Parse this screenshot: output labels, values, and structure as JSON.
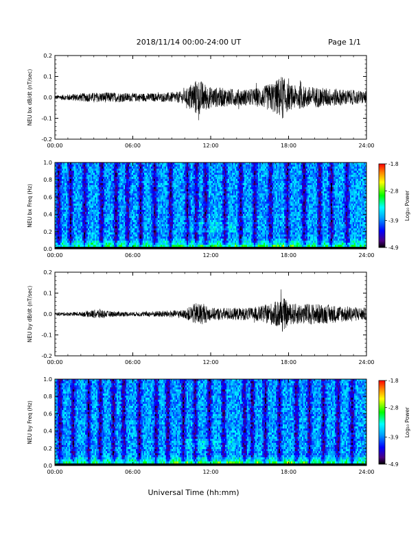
{
  "header": {
    "title": "2018/11/14  00:00-24:00 UT",
    "page": "Page 1/1"
  },
  "xlabel": "Universal Time (hh:mm)",
  "colorbar": {
    "label": "Log₁₀ Power",
    "ticks": [
      "-1.8",
      "-2.8",
      "-3.9",
      "-4.9"
    ],
    "range": [
      -4.9,
      -1.8
    ]
  },
  "chart_data": [
    {
      "type": "line",
      "ylabel": "NEU bx dB/dt (nT/sec)",
      "xlim": [
        0,
        24
      ],
      "ylim": [
        -0.2,
        0.2
      ],
      "x_ticks": [
        "00:00",
        "06:00",
        "12:00",
        "18:00",
        "24:00"
      ],
      "y_ticks": [
        "0.2",
        "0.1",
        "0.0",
        "-0.1",
        "-0.2"
      ],
      "amplitude_envelope_hours": [
        0,
        2,
        4,
        6,
        8,
        10,
        10.5,
        11,
        12,
        14,
        15,
        16,
        17,
        17.5,
        18,
        20,
        22,
        24
      ],
      "amplitude_envelope_values": [
        0.01,
        0.02,
        0.025,
        0.02,
        0.02,
        0.03,
        0.07,
        0.09,
        0.05,
        0.04,
        0.04,
        0.05,
        0.08,
        0.11,
        0.06,
        0.05,
        0.04,
        0.03
      ]
    },
    {
      "type": "heatmap",
      "ylabel": "NEU bx Freq (Hz)",
      "xlim": [
        0,
        24
      ],
      "ylim": [
        0,
        1.0
      ],
      "x_ticks": [
        "00:00",
        "06:00",
        "12:00",
        "18:00",
        "24:00"
      ],
      "y_ticks": [
        "1.0",
        "0.8",
        "0.6",
        "0.4",
        "0.2",
        "0.0"
      ],
      "colorscale": "rainbow",
      "dark_band_hours": [
        0.3,
        1.2,
        2.3,
        3.6,
        4.7,
        5.6,
        6.6,
        7.7,
        8.9,
        10.2,
        10.9,
        11.6,
        13.1,
        14.3,
        15.4,
        16.6,
        17.9,
        19.2,
        20.4,
        21.3,
        22.5
      ]
    },
    {
      "type": "line",
      "ylabel": "NEU by dB/dt (nT/sec)",
      "xlim": [
        0,
        24
      ],
      "ylim": [
        -0.2,
        0.2
      ],
      "x_ticks": [
        "00:00",
        "06:00",
        "12:00",
        "18:00",
        "24:00"
      ],
      "y_ticks": [
        "0.2",
        "0.1",
        "0.0",
        "-0.1",
        "-0.2"
      ],
      "amplitude_envelope_hours": [
        0,
        2,
        3.5,
        4,
        6,
        8,
        10,
        10.5,
        11,
        12,
        14,
        15,
        16,
        17,
        17.5,
        18,
        20,
        22,
        24
      ],
      "amplitude_envelope_values": [
        0.008,
        0.01,
        0.025,
        0.015,
        0.01,
        0.015,
        0.02,
        0.04,
        0.06,
        0.03,
        0.03,
        0.03,
        0.04,
        0.06,
        0.09,
        0.05,
        0.05,
        0.04,
        0.03
      ]
    },
    {
      "type": "heatmap",
      "ylabel": "NEU by Freq (Hz)",
      "xlim": [
        0,
        24
      ],
      "ylim": [
        0,
        1.0
      ],
      "x_ticks": [
        "00:00",
        "06:00",
        "12:00",
        "18:00",
        "24:00"
      ],
      "y_ticks": [
        "1.0",
        "0.8",
        "0.6",
        "0.4",
        "0.2",
        "0.0"
      ],
      "colorscale": "rainbow",
      "dark_band_hours": [
        0.4,
        1.4,
        2.6,
        3.5,
        4.5,
        5.3,
        6.5,
        7.8,
        8.7,
        9.9,
        10.8,
        11.9,
        13.0,
        14.6,
        15.2,
        16.2,
        17.3,
        18.6,
        19.6,
        20.7,
        21.8,
        22.9
      ]
    }
  ]
}
